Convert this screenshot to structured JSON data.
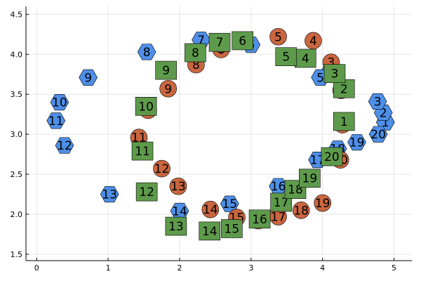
{
  "chart_data": {
    "type": "scatter",
    "xlim": [
      -0.15,
      5.25
    ],
    "ylim": [
      1.42,
      4.6
    ],
    "xticks": [
      "0",
      "1",
      "2",
      "3",
      "4",
      "5"
    ],
    "yticks": [
      "1.5",
      "2.0",
      "2.5",
      "3.0",
      "3.5",
      "4.0",
      "4.5"
    ],
    "xtick_values": [
      0,
      1,
      2,
      3,
      4,
      5
    ],
    "ytick_values": [
      1.5,
      2.0,
      2.5,
      3.0,
      3.5,
      4.0,
      4.5
    ],
    "grid": true,
    "legend": "none",
    "series": [
      {
        "marker": "hexagon",
        "color": "#4e8fe8",
        "points": [
          {
            "x": 4.88,
            "y": 3.15,
            "label": "1"
          },
          {
            "x": 4.85,
            "y": 3.27,
            "label": "2"
          },
          {
            "x": 4.77,
            "y": 3.41,
            "label": "3"
          },
          {
            "x": 4.12,
            "y": 3.81,
            "label": "4"
          },
          {
            "x": 3.97,
            "y": 3.71,
            "label": "5"
          },
          {
            "x": 3.0,
            "y": 4.12,
            "label": "6"
          },
          {
            "x": 2.3,
            "y": 4.18,
            "label": "7"
          },
          {
            "x": 1.54,
            "y": 4.03,
            "label": "8"
          },
          {
            "x": 0.72,
            "y": 3.71,
            "label": "9"
          },
          {
            "x": 0.32,
            "y": 3.4,
            "label": "10"
          },
          {
            "x": 0.27,
            "y": 3.17,
            "label": "11"
          },
          {
            "x": 0.39,
            "y": 2.86,
            "label": "12"
          },
          {
            "x": 1.02,
            "y": 2.25,
            "label": "13"
          },
          {
            "x": 2.0,
            "y": 2.04,
            "label": "14"
          },
          {
            "x": 2.7,
            "y": 2.13,
            "label": "15"
          },
          {
            "x": 3.38,
            "y": 2.35,
            "label": "16"
          },
          {
            "x": 3.93,
            "y": 2.68,
            "label": "17"
          },
          {
            "x": 4.21,
            "y": 2.82,
            "label": "18"
          },
          {
            "x": 4.48,
            "y": 2.9,
            "label": "19"
          },
          {
            "x": 4.78,
            "y": 3.0,
            "label": "20"
          }
        ]
      },
      {
        "marker": "circle",
        "color": "#c9663f",
        "points": [
          {
            "x": 4.28,
            "y": 3.12,
            "label": "1"
          },
          {
            "x": 4.26,
            "y": 3.55,
            "label": "2"
          },
          {
            "x": 4.12,
            "y": 3.9,
            "label": "3"
          },
          {
            "x": 3.87,
            "y": 4.17,
            "label": "4"
          },
          {
            "x": 3.38,
            "y": 4.22,
            "label": "5"
          },
          {
            "x": 2.58,
            "y": 4.06,
            "label": "6"
          },
          {
            "x": 2.58,
            "y": 4.13,
            "label": "7"
          },
          {
            "x": 2.23,
            "y": 3.87,
            "label": "8"
          },
          {
            "x": 1.84,
            "y": 3.57,
            "label": "9"
          },
          {
            "x": 1.56,
            "y": 3.3,
            "label": "10"
          },
          {
            "x": 1.43,
            "y": 2.96,
            "label": "11"
          },
          {
            "x": 1.75,
            "y": 2.57,
            "label": "12"
          },
          {
            "x": 1.98,
            "y": 2.35,
            "label": "13"
          },
          {
            "x": 2.43,
            "y": 2.06,
            "label": "14"
          },
          {
            "x": 2.8,
            "y": 1.96,
            "label": "15"
          },
          {
            "x": 3.1,
            "y": 1.92,
            "label": "16"
          },
          {
            "x": 3.38,
            "y": 1.97,
            "label": "17"
          },
          {
            "x": 3.7,
            "y": 2.05,
            "label": "18"
          },
          {
            "x": 4.0,
            "y": 2.14,
            "label": "19"
          },
          {
            "x": 4.25,
            "y": 2.68,
            "label": "20"
          }
        ]
      },
      {
        "marker": "square",
        "color": "#5e9a4b",
        "points": [
          {
            "x": 4.3,
            "y": 3.16,
            "label": "1"
          },
          {
            "x": 4.3,
            "y": 3.57,
            "label": "2"
          },
          {
            "x": 4.17,
            "y": 3.76,
            "label": "3"
          },
          {
            "x": 3.76,
            "y": 3.95,
            "label": "4"
          },
          {
            "x": 3.49,
            "y": 3.97,
            "label": "5"
          },
          {
            "x": 2.88,
            "y": 4.17,
            "label": "6"
          },
          {
            "x": 2.56,
            "y": 4.15,
            "label": "7"
          },
          {
            "x": 2.22,
            "y": 4.02,
            "label": "8"
          },
          {
            "x": 1.81,
            "y": 3.8,
            "label": "9"
          },
          {
            "x": 1.53,
            "y": 3.35,
            "label": "10"
          },
          {
            "x": 1.48,
            "y": 2.79,
            "label": "11"
          },
          {
            "x": 1.54,
            "y": 2.28,
            "label": "12"
          },
          {
            "x": 1.95,
            "y": 1.85,
            "label": "13"
          },
          {
            "x": 2.42,
            "y": 1.79,
            "label": "14"
          },
          {
            "x": 2.73,
            "y": 1.82,
            "label": "15"
          },
          {
            "x": 3.12,
            "y": 1.94,
            "label": "16"
          },
          {
            "x": 3.42,
            "y": 2.15,
            "label": "17"
          },
          {
            "x": 3.62,
            "y": 2.31,
            "label": "18"
          },
          {
            "x": 3.82,
            "y": 2.45,
            "label": "19"
          },
          {
            "x": 4.13,
            "y": 2.72,
            "label": "20"
          }
        ]
      }
    ]
  }
}
